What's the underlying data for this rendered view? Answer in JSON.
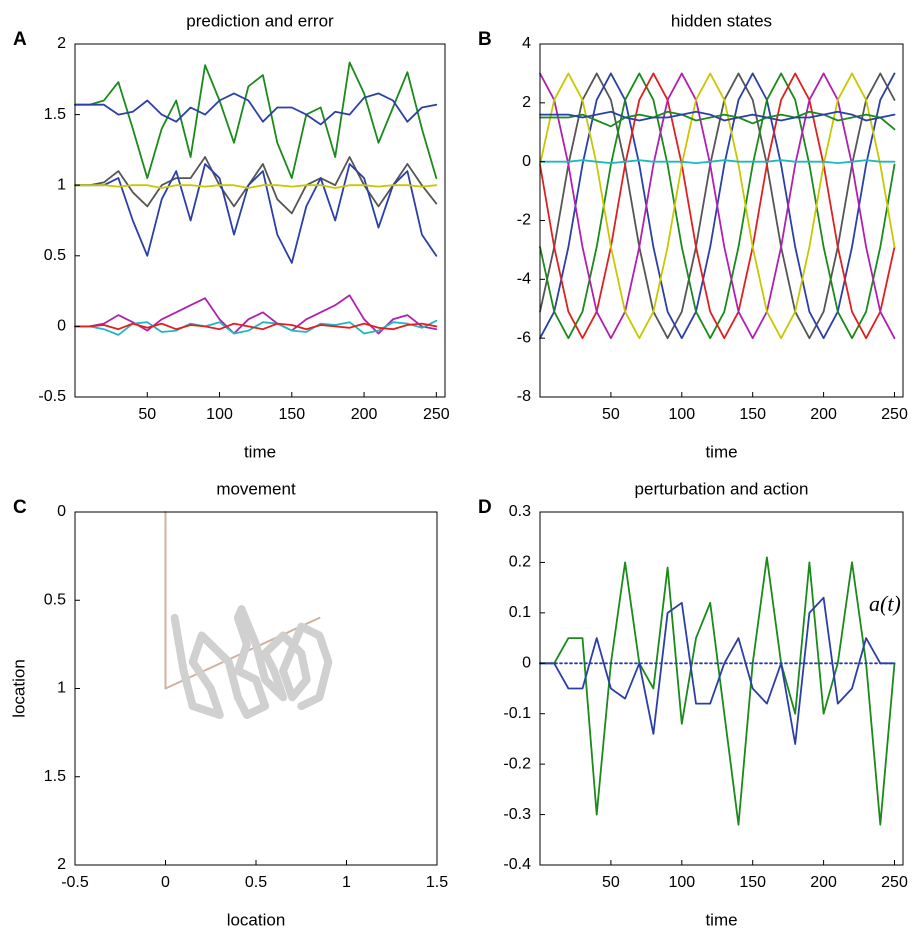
{
  "chart_data": [
    {
      "type": "line",
      "panel_label": "A",
      "title": "prediction and error",
      "x_label": "time",
      "x": [
        0,
        10,
        20,
        30,
        40,
        50,
        60,
        70,
        80,
        90,
        100,
        110,
        120,
        130,
        140,
        150,
        160,
        170,
        180,
        190,
        200,
        210,
        220,
        230,
        240,
        250
      ],
      "xlim": [
        0,
        256
      ],
      "xticks": [
        50,
        100,
        150,
        200,
        250
      ],
      "ylim": [
        -0.5,
        2
      ],
      "yticks": [
        -0.5,
        0,
        0.5,
        1,
        1.5,
        2
      ],
      "series": [
        {
          "color": "#1a8a1a",
          "values": [
            1.57,
            1.57,
            1.6,
            1.73,
            1.4,
            1.05,
            1.4,
            1.6,
            1.2,
            1.85,
            1.6,
            1.3,
            1.7,
            1.78,
            1.3,
            1.05,
            1.5,
            1.55,
            1.2,
            1.87,
            1.65,
            1.3,
            1.55,
            1.8,
            1.4,
            1.05
          ]
        },
        {
          "color": "#2b3fa8",
          "values": [
            1.57,
            1.57,
            1.57,
            1.5,
            1.52,
            1.6,
            1.5,
            1.45,
            1.55,
            1.5,
            1.6,
            1.65,
            1.6,
            1.45,
            1.55,
            1.55,
            1.5,
            1.43,
            1.52,
            1.5,
            1.62,
            1.65,
            1.6,
            1.45,
            1.55,
            1.57
          ]
        },
        {
          "color": "#555555",
          "values": [
            1,
            1,
            1.02,
            1.1,
            0.95,
            0.85,
            1.0,
            1.05,
            1.05,
            1.2,
            1.0,
            0.85,
            1.0,
            1.15,
            0.9,
            0.8,
            1.0,
            1.05,
            1.0,
            1.2,
            1.0,
            0.85,
            1.0,
            1.15,
            1.0,
            0.87
          ]
        },
        {
          "color": "#2b3fa8",
          "values": [
            1,
            1,
            1.0,
            1.05,
            0.75,
            0.5,
            0.9,
            1.1,
            0.75,
            1.15,
            1.05,
            0.65,
            1.0,
            1.1,
            0.65,
            0.45,
            0.85,
            1.05,
            0.75,
            1.15,
            1.05,
            0.7,
            1.0,
            1.1,
            0.65,
            0.5
          ]
        },
        {
          "color": "#c8c800",
          "values": [
            1,
            1,
            1,
            0.99,
            1,
            1,
            0.98,
            1,
            1,
            0.99,
            1,
            1,
            0.98,
            1,
            1,
            0.99,
            1,
            1,
            0.98,
            1,
            1,
            0.99,
            1,
            1,
            0.99,
            1
          ]
        },
        {
          "color": "#b020b0",
          "values": [
            0,
            0,
            0.02,
            0.08,
            0.03,
            -0.03,
            0.05,
            0.1,
            0.15,
            0.2,
            0.05,
            -0.05,
            0.05,
            0.1,
            0.02,
            -0.03,
            0.05,
            0.1,
            0.15,
            0.22,
            0.05,
            -0.05,
            0.05,
            0.08,
            0.0,
            -0.02
          ]
        },
        {
          "color": "#20b8c0",
          "values": [
            0,
            0,
            -0.02,
            -0.06,
            0.02,
            0.03,
            -0.04,
            -0.03,
            0.02,
            0.0,
            0.03,
            -0.05,
            -0.03,
            0.03,
            0.02,
            -0.03,
            -0.04,
            0.02,
            0.01,
            0.03,
            -0.05,
            -0.03,
            0.03,
            0.02,
            -0.01,
            0.04
          ]
        },
        {
          "color": "#e02020",
          "values": [
            0,
            0,
            0.01,
            -0.02,
            0.02,
            -0.01,
            0.02,
            -0.02,
            0.01,
            0.0,
            -0.02,
            0.02,
            0.0,
            -0.02,
            0.02,
            0.01,
            -0.02,
            0.01,
            0.0,
            -0.01,
            0.02,
            -0.01,
            -0.02,
            0.01,
            0.02,
            0.0
          ]
        }
      ]
    },
    {
      "type": "line",
      "panel_label": "B",
      "title": "hidden states",
      "x_label": "time",
      "x": [
        0,
        10,
        20,
        30,
        40,
        50,
        60,
        70,
        80,
        90,
        100,
        110,
        120,
        130,
        140,
        150,
        160,
        170,
        180,
        190,
        200,
        210,
        220,
        230,
        240,
        250
      ],
      "xlim": [
        0,
        256
      ],
      "xticks": [
        50,
        100,
        150,
        200,
        250
      ],
      "ylim": [
        -8,
        4
      ],
      "yticks": [
        -8,
        -6,
        -4,
        -2,
        0,
        2,
        4
      ],
      "series": [
        {
          "color": "#555555",
          "values": [
            -5.1,
            -2.9,
            -0.1,
            2.1,
            3.0,
            2.1,
            -0.1,
            -2.9,
            -5.1,
            -6.0,
            -5.1,
            -2.9,
            -0.1,
            2.1,
            3.0,
            2.1,
            -0.1,
            -2.9,
            -5.1,
            -6.0,
            -5.1,
            -2.9,
            -0.1,
            2.1,
            3.0,
            2.1
          ]
        },
        {
          "color": "#2b3fa8",
          "values": [
            -6.0,
            -5.1,
            -2.9,
            -0.1,
            2.1,
            3.0,
            2.1,
            -0.1,
            -2.9,
            -5.1,
            -6.0,
            -5.1,
            -2.9,
            -0.1,
            2.1,
            3.0,
            2.1,
            -0.1,
            -2.9,
            -5.1,
            -6.0,
            -5.1,
            -2.9,
            -0.1,
            2.1,
            3.0
          ]
        },
        {
          "color": "#1a8a1a",
          "values": [
            -2.9,
            -5.1,
            -6.0,
            -5.1,
            -2.9,
            -0.1,
            2.1,
            3.0,
            2.1,
            -0.1,
            -2.9,
            -5.1,
            -6.0,
            -5.1,
            -2.9,
            -0.1,
            2.1,
            3.0,
            2.1,
            -0.1,
            -2.9,
            -5.1,
            -6.0,
            -5.1,
            -2.9,
            -0.1
          ]
        },
        {
          "color": "#e02020",
          "values": [
            -0.1,
            -2.9,
            -5.1,
            -6.0,
            -5.1,
            -2.9,
            -0.1,
            2.1,
            3.0,
            2.1,
            -0.1,
            -2.9,
            -5.1,
            -6.0,
            -5.1,
            -2.9,
            -0.1,
            2.1,
            3.0,
            2.1,
            -0.1,
            -2.9,
            -5.1,
            -6.0,
            -5.1,
            -2.9
          ]
        },
        {
          "color": "#b020b0",
          "values": [
            3.0,
            2.1,
            -0.1,
            -2.9,
            -5.1,
            -6.0,
            -5.1,
            -2.9,
            -0.1,
            2.1,
            3.0,
            2.1,
            -0.1,
            -2.9,
            -5.1,
            -6.0,
            -5.1,
            -2.9,
            -0.1,
            2.1,
            3.0,
            2.1,
            -0.1,
            -2.9,
            -5.1,
            -6.0
          ]
        },
        {
          "color": "#c8c800",
          "values": [
            -0.1,
            2.1,
            3.0,
            2.1,
            -0.1,
            -2.9,
            -5.1,
            -6.0,
            -5.1,
            -2.9,
            -0.1,
            2.1,
            3.0,
            2.1,
            -0.1,
            -2.9,
            -5.1,
            -6.0,
            -5.1,
            -2.9,
            -0.1,
            2.1,
            3.0,
            2.1,
            -0.1,
            -2.9
          ]
        },
        {
          "color": "#1a8a1a",
          "values": [
            1.5,
            1.5,
            1.5,
            1.6,
            1.4,
            1.2,
            1.5,
            1.6,
            1.5,
            1.7,
            1.6,
            1.4,
            1.5,
            1.6,
            1.5,
            1.3,
            1.5,
            1.6,
            1.5,
            1.7,
            1.6,
            1.4,
            1.5,
            1.6,
            1.5,
            1.1
          ]
        },
        {
          "color": "#2b3fa8",
          "values": [
            1.6,
            1.6,
            1.6,
            1.5,
            1.6,
            1.7,
            1.5,
            1.4,
            1.5,
            1.5,
            1.6,
            1.7,
            1.6,
            1.4,
            1.5,
            1.6,
            1.5,
            1.4,
            1.5,
            1.5,
            1.6,
            1.7,
            1.6,
            1.4,
            1.5,
            1.6
          ]
        },
        {
          "color": "#20b8c0",
          "values": [
            0,
            0,
            0,
            0.05,
            0,
            -0.05,
            0,
            0.05,
            0,
            0,
            0,
            -0.05,
            0,
            0.05,
            0,
            0,
            0,
            0.05,
            0,
            0,
            0,
            -0.05,
            0,
            0.05,
            0,
            0
          ]
        }
      ]
    },
    {
      "type": "line",
      "panel_label": "C",
      "title": "movement",
      "x_label": "location",
      "y_label": "location",
      "xlim": [
        -0.5,
        1.5
      ],
      "xticks": [
        -0.5,
        0,
        0.5,
        1,
        1.5
      ],
      "ylim": [
        0,
        2
      ],
      "yticks": [
        0,
        0.5,
        1,
        1.5,
        2
      ],
      "y_reversed": true,
      "series": [
        {
          "color": "#d0b0a0",
          "width": 2,
          "x": [
            0,
            0,
            0.85
          ],
          "values": [
            0,
            1,
            0.6
          ]
        },
        {
          "color": "#d0d0d0",
          "width": 8,
          "x": [
            0.05,
            0.1,
            0.15,
            0.3,
            0.25,
            0.15,
            0.2,
            0.35,
            0.4,
            0.45,
            0.55,
            0.5,
            0.4,
            0.45,
            0.4,
            0.42,
            0.5,
            0.55,
            0.65,
            0.6,
            0.55,
            0.65,
            0.75,
            0.78,
            0.7,
            0.65,
            0.75,
            0.85,
            0.9,
            0.85,
            0.75
          ],
          "values": [
            0.6,
            0.9,
            1.1,
            1.15,
            1.0,
            0.85,
            0.7,
            0.85,
            1.05,
            1.15,
            1.1,
            0.95,
            0.9,
            0.75,
            0.6,
            0.55,
            0.75,
            0.95,
            1.05,
            0.9,
            0.8,
            0.7,
            0.8,
            0.95,
            1.05,
            0.9,
            0.65,
            0.7,
            0.85,
            1.05,
            1.1
          ]
        }
      ]
    },
    {
      "type": "line",
      "panel_label": "D",
      "title": "perturbation and action",
      "x_label": "time",
      "annotation": "a(t)",
      "x": [
        0,
        10,
        20,
        30,
        40,
        50,
        60,
        70,
        80,
        90,
        100,
        110,
        120,
        130,
        140,
        150,
        160,
        170,
        180,
        190,
        200,
        210,
        220,
        230,
        240,
        250
      ],
      "xlim": [
        0,
        256
      ],
      "xticks": [
        50,
        100,
        150,
        200,
        250
      ],
      "ylim": [
        -0.4,
        0.3
      ],
      "yticks": [
        -0.4,
        -0.3,
        -0.2,
        -0.1,
        0,
        0.1,
        0.2,
        0.3
      ],
      "series": [
        {
          "color": "#1a8a1a",
          "values": [
            0,
            0,
            0.05,
            0.05,
            -0.3,
            0.0,
            0.2,
            0.0,
            -0.05,
            0.19,
            -0.12,
            0.05,
            0.12,
            -0.1,
            -0.32,
            0.0,
            0.21,
            0.0,
            -0.1,
            0.2,
            -0.1,
            0.0,
            0.2,
            0.0,
            -0.32,
            0.0
          ]
        },
        {
          "color": "#2b3fa8",
          "values": [
            0,
            0,
            -0.05,
            -0.05,
            0.05,
            -0.05,
            -0.07,
            0.0,
            -0.14,
            0.1,
            0.12,
            -0.08,
            -0.08,
            0.0,
            0.05,
            -0.05,
            -0.08,
            0.0,
            -0.16,
            0.1,
            0.13,
            -0.08,
            -0.05,
            0.05,
            0.0,
            0.0
          ]
        },
        {
          "color": "#2b3fa8",
          "dashed": true,
          "values": [
            0,
            0,
            0,
            0,
            0,
            0,
            0,
            0,
            0,
            0,
            0,
            0,
            0,
            0,
            0,
            0,
            0,
            0,
            0,
            0,
            0,
            0,
            0,
            0,
            0,
            0
          ]
        }
      ]
    }
  ]
}
